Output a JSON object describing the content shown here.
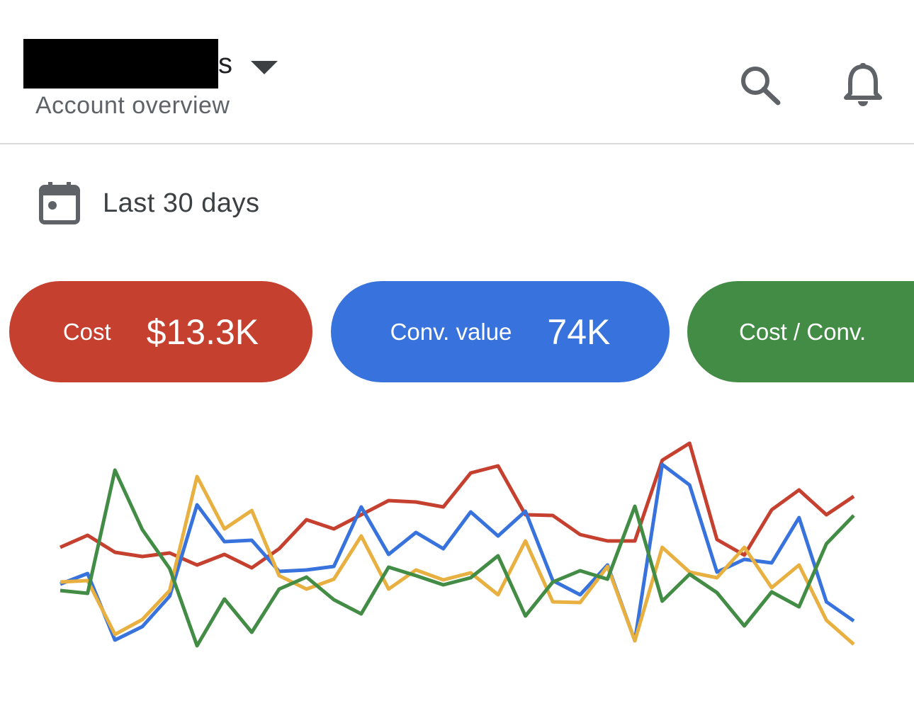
{
  "header": {
    "account_name_visible": "s",
    "subtitle": "Account overview",
    "icons": [
      "dropdown-caret-icon",
      "search-icon",
      "bell-icon"
    ]
  },
  "date_range": {
    "label": "Last 30 days",
    "icon": "calendar-icon"
  },
  "metrics": [
    {
      "label": "Cost",
      "value": "$13.3K",
      "color": "#c5402f"
    },
    {
      "label": "Conv. value",
      "value": "74K",
      "color": "#3872dc"
    },
    {
      "label": "Cost / Conv.",
      "value": "",
      "color": "#438c45"
    }
  ],
  "chart_data": {
    "type": "line",
    "grid": false,
    "x": [
      1,
      2,
      3,
      4,
      5,
      6,
      7,
      8,
      9,
      10,
      11,
      12,
      13,
      14,
      15,
      16,
      17,
      18,
      19,
      20,
      21,
      22,
      23,
      24,
      25,
      26,
      27,
      28,
      29,
      30
    ],
    "ylim": [
      0,
      350
    ],
    "series": [
      {
        "color": "#c5402f",
        "values": [
          177,
          194,
          170,
          164,
          169,
          152,
          167,
          148,
          175,
          216,
          203,
          223,
          243,
          241,
          234,
          282,
          292,
          223,
          222,
          195,
          186,
          186,
          300,
          324,
          188,
          166,
          230,
          258,
          223,
          249
        ]
      },
      {
        "color": "#3872dc",
        "values": [
          125,
          140,
          46,
          65,
          108,
          237,
          185,
          187,
          143,
          145,
          150,
          234,
          167,
          198,
          175,
          227,
          193,
          228,
          130,
          110,
          152,
          45,
          294,
          265,
          142,
          160,
          155,
          219,
          100,
          73
        ]
      },
      {
        "color": "#e8b040",
        "values": [
          128,
          130,
          54,
          75,
          116,
          277,
          203,
          229,
          137,
          118,
          132,
          193,
          118,
          145,
          131,
          141,
          110,
          186,
          100,
          99,
          150,
          45,
          177,
          142,
          134,
          177,
          120,
          152,
          74,
          40
        ]
      },
      {
        "color": "#438c45",
        "values": [
          116,
          112,
          286,
          202,
          147,
          38,
          104,
          57,
          118,
          135,
          103,
          83,
          149,
          137,
          124,
          134,
          165,
          80,
          128,
          144,
          132,
          235,
          101,
          139,
          113,
          66,
          114,
          93,
          182,
          222
        ]
      }
    ]
  }
}
